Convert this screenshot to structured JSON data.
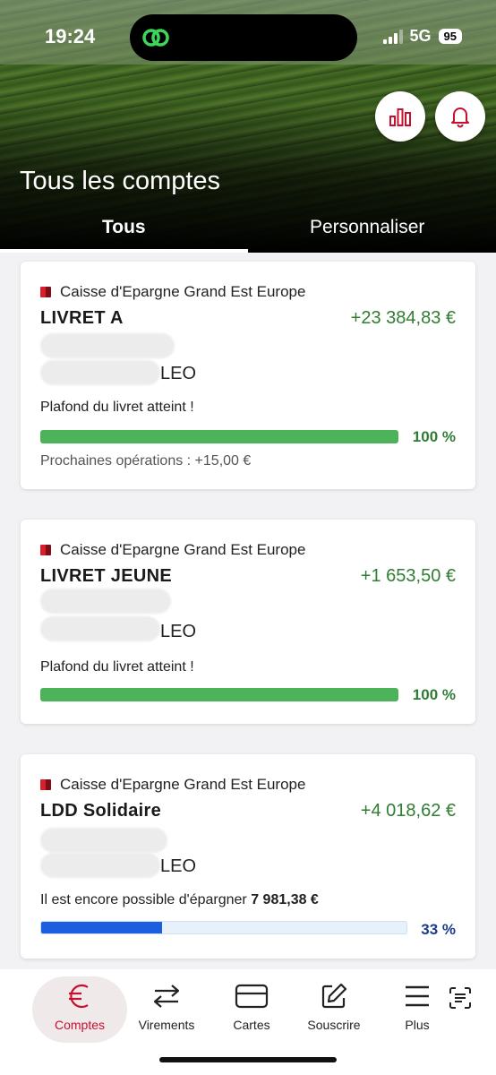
{
  "status_bar": {
    "time": "19:24",
    "network": "5G",
    "battery": "95"
  },
  "header": {
    "title": "Tous les comptes",
    "tabs": [
      {
        "label": "Tous",
        "active": true
      },
      {
        "label": "Personnaliser",
        "active": false
      }
    ]
  },
  "accounts": [
    {
      "bank": "Caisse d'Epargne Grand Est Europe",
      "name": "LIVRET A",
      "amount": "+23 384,83 €",
      "owner_suffix": "LEO",
      "note": "Plafond du livret atteint !",
      "progress": 100,
      "progress_label": "100 %",
      "next_ops": "Prochaines opérations : +15,00 €"
    },
    {
      "bank": "Caisse d'Epargne Grand Est Europe",
      "name": "LIVRET JEUNE",
      "amount": "+1 653,50 €",
      "owner_suffix": "LEO",
      "note": "Plafond du livret atteint !",
      "progress": 100,
      "progress_label": "100 %"
    },
    {
      "bank": "Caisse d'Epargne Grand Est Europe",
      "name": "LDD Solidaire",
      "amount": "+4 018,62 €",
      "owner_suffix": "LEO",
      "note_prefix": "Il est encore possible d'épargner ",
      "note_amount": "7 981,38 €",
      "progress": 33,
      "progress_label": "33 %"
    }
  ],
  "nav": [
    {
      "label": "Comptes",
      "icon": "euro-icon"
    },
    {
      "label": "Virements",
      "icon": "transfer-icon"
    },
    {
      "label": "Cartes",
      "icon": "card-icon"
    },
    {
      "label": "Souscrire",
      "icon": "edit-icon"
    },
    {
      "label": "Plus",
      "icon": "menu-icon"
    }
  ],
  "colors": {
    "green_amount": "#2f7d32",
    "green_bar": "#4db35a",
    "blue_bar": "#1c5ee0",
    "brand_red": "#c8102e"
  }
}
